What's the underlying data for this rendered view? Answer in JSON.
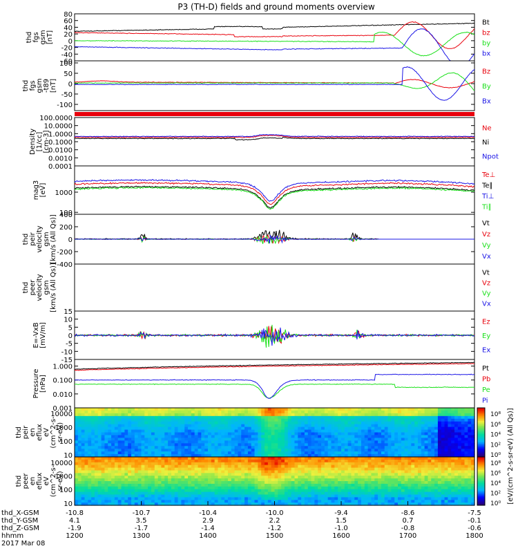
{
  "title": "P3 (TH-D) fields and ground moments overview",
  "colors": {
    "black": "#000000",
    "red": "#e8000b",
    "green": "#19e019",
    "blue": "#1a14e6"
  },
  "chart_data": [
    {
      "type": "line",
      "ylabel": [
        "thd",
        "fgs",
        "gsm",
        "[nT]"
      ],
      "yticks": [
        80,
        60,
        40,
        20,
        0,
        -20,
        -40,
        -60
      ],
      "ylim": [
        -60,
        80
      ],
      "series": [
        {
          "name": "Bt",
          "color": "black"
        },
        {
          "name": "bz",
          "color": "red"
        },
        {
          "name": "by",
          "color": "green"
        },
        {
          "name": "bx",
          "color": "blue"
        }
      ]
    },
    {
      "type": "line",
      "ylabel": [
        "thd",
        "fgs",
        "gsm",
        "-t89",
        "[nT]"
      ],
      "yticks": [
        100,
        50,
        0,
        -50,
        -100
      ],
      "ylim": [
        -130,
        110
      ],
      "series": [
        {
          "name": "Bz",
          "color": "red"
        },
        {
          "name": "By",
          "color": "green"
        },
        {
          "name": "Bx",
          "color": "blue"
        }
      ]
    },
    {
      "type": "line",
      "ylabel": [
        "Density",
        "[1/cc]",
        "[cm-3]"
      ],
      "yticks": [
        "100.0000",
        "10.0000",
        "1.0000",
        "0.1000",
        "0.0100",
        "0.0010",
        "0.0001"
      ],
      "ylim": [
        0.0001,
        100
      ],
      "series": [
        {
          "name": "Ne",
          "color": "red"
        },
        {
          "name": "Ni",
          "color": "black"
        },
        {
          "name": "Npot",
          "color": "blue"
        }
      ]
    },
    {
      "type": "line",
      "ylabel": [
        "mag3",
        "[eV]"
      ],
      "yticks": [
        1000,
        100
      ],
      "ylim": [
        80,
        20000
      ],
      "series": [
        {
          "name": "Te⊥",
          "color": "red"
        },
        {
          "name": "Te∥",
          "color": "black"
        },
        {
          "name": "Ti⊥",
          "color": "blue"
        },
        {
          "name": "Ti∥",
          "color": "green"
        }
      ]
    },
    {
      "type": "line",
      "ylabel": [
        "thd",
        "peir",
        "velocity",
        "gsm",
        "[km/s (All Qs)]"
      ],
      "yticks": [
        400,
        200,
        0,
        -200,
        -400
      ],
      "ylim": [
        -400,
        400
      ],
      "series": [
        {
          "name": "Vt",
          "color": "black"
        },
        {
          "name": "Vz",
          "color": "red"
        },
        {
          "name": "Vy",
          "color": "green"
        },
        {
          "name": "Vx",
          "color": "blue"
        }
      ]
    },
    {
      "type": "line",
      "ylabel": [
        "thd",
        "peer",
        "velocity",
        "gsm",
        "[km/s (All Qs)]"
      ],
      "yticks": [],
      "ylim": [
        -1,
        1
      ],
      "series": [
        {
          "name": "Vt",
          "color": "black"
        },
        {
          "name": "Vz",
          "color": "red"
        },
        {
          "name": "Vy",
          "color": "green"
        },
        {
          "name": "Vx",
          "color": "blue"
        }
      ]
    },
    {
      "type": "line",
      "ylabel": [
        "E=-VxB",
        "[mV/m]"
      ],
      "yticks": [
        15,
        10,
        5,
        0,
        -5,
        -10,
        -15
      ],
      "ylim": [
        -15,
        15
      ],
      "series": [
        {
          "name": "Ez",
          "color": "red"
        },
        {
          "name": "Ey",
          "color": "green"
        },
        {
          "name": "Ex",
          "color": "blue"
        }
      ]
    },
    {
      "type": "line",
      "ylabel": [
        "Pressure",
        "[nPa]"
      ],
      "yticks": [
        "1.000",
        "0.100",
        "0.010",
        "0.001"
      ],
      "ylim": [
        0.001,
        3
      ],
      "series": [
        {
          "name": "Pt",
          "color": "black"
        },
        {
          "name": "Pb",
          "color": "red"
        },
        {
          "name": "Pe",
          "color": "green"
        },
        {
          "name": "Pi",
          "color": "blue"
        }
      ]
    },
    {
      "type": "heatmap",
      "ylabel": [
        "thd",
        "peir",
        "en",
        "eflux",
        "eV",
        "(cm^2-s-",
        "sr-eV)"
      ],
      "yticks": [
        10000,
        1000,
        100,
        10
      ],
      "ylim": [
        7,
        25000
      ]
    },
    {
      "type": "heatmap",
      "ylabel": [
        "thd",
        "peer",
        "en",
        "eflux",
        "eV",
        "(cm^2-s-",
        "sr-eV)"
      ],
      "yticks": [
        10000,
        1000,
        100,
        10
      ],
      "ylim": [
        7,
        25000
      ]
    }
  ],
  "colorbar": {
    "label": "[eV/(cm^2-s-sr-eV) (All Qs)]",
    "upper_ticks": [
      "10⁸",
      "10⁶",
      "10⁴",
      "10²",
      "10⁰"
    ],
    "lower_ticks": [
      "10⁸",
      "10⁶",
      "10⁴",
      "10²",
      "10⁰"
    ]
  },
  "xaxis": {
    "rows": [
      {
        "label": "thd_X-GSM",
        "values": [
          "-10.8",
          "-10.7",
          "-10.4",
          "-10.0",
          "-9.4",
          "-8.6",
          "-7.5"
        ]
      },
      {
        "label": "thd_Y-GSM",
        "values": [
          "4.1",
          "3.5",
          "2.9",
          "2.2",
          "1.5",
          "0.7",
          "-0.1"
        ]
      },
      {
        "label": "thd_Z-GSM",
        "values": [
          "-1.9",
          "-1.7",
          "-1.4",
          "-1.2",
          "-1.0",
          "-0.8",
          "-0.6"
        ]
      },
      {
        "label": "hhmm",
        "values": [
          "1200",
          "1300",
          "1400",
          "1500",
          "1600",
          "1700",
          "1800"
        ]
      }
    ],
    "date": "2017 Mar 08"
  }
}
